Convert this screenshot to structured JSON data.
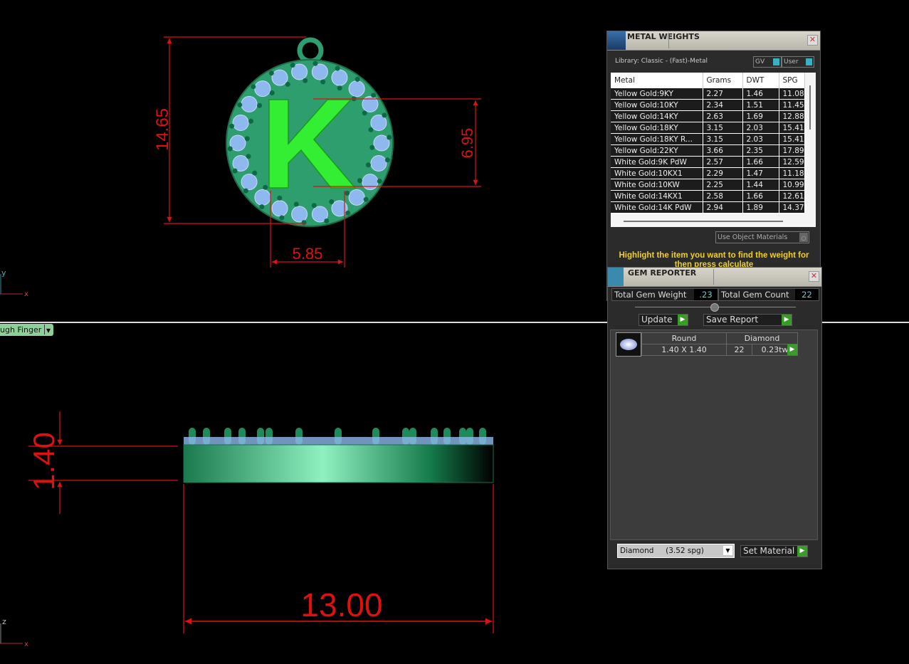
{
  "viewport": {
    "dimensions_top": {
      "height": "14.65",
      "letter_height": "6.95",
      "letter_width": "5.85"
    },
    "dimensions_side": {
      "thickness": "1.40",
      "width": "13.00"
    },
    "letter": "K",
    "axis_top": {
      "y": "y",
      "x": "x"
    },
    "axis_bottom": {
      "z": "z",
      "x": "x"
    },
    "view_dropdown": "ugh Finger"
  },
  "metal_weights": {
    "title": "METAL WEIGHTS",
    "library": "Library: Classic - (Fast)-Metal",
    "gv_label": "GV",
    "user_label": "User",
    "columns": [
      "Metal",
      "Grams",
      "DWT",
      "SPG"
    ],
    "rows": [
      [
        "Yellow Gold:9KY",
        "2.27",
        "1.46",
        "11.08"
      ],
      [
        "Yellow Gold:10KY",
        "2.34",
        "1.51",
        "11.45"
      ],
      [
        "Yellow Gold:14KY",
        "2.63",
        "1.69",
        "12.88"
      ],
      [
        "Yellow Gold:18KY",
        "3.15",
        "2.03",
        "15.41"
      ],
      [
        "Yellow Gold:18KY R...",
        "3.15",
        "2.03",
        "15.41"
      ],
      [
        "Yellow Gold:22KY",
        "3.66",
        "2.35",
        "17.89"
      ],
      [
        "White Gold:9K PdW",
        "2.57",
        "1.66",
        "12.59"
      ],
      [
        "White Gold:10KX1",
        "2.29",
        "1.47",
        "11.18"
      ],
      [
        "White Gold:10KW",
        "2.25",
        "1.44",
        "10.99"
      ],
      [
        "White Gold:14KX1",
        "2.58",
        "1.66",
        "12.61"
      ],
      [
        "White Gold:14K PdW",
        "2.94",
        "1.89",
        "14.37"
      ]
    ],
    "use_object_materials": "Use Object Materials",
    "hint": "Highlight the item you want to find the weight for then press calculate"
  },
  "gem_reporter": {
    "title": "GEM REPORTER",
    "total_weight_label": "Total Gem Weight",
    "total_weight": ".23",
    "total_count_label": "Total Gem Count",
    "total_count": "22",
    "update": "Update",
    "save_report": "Save Report",
    "gem": {
      "shape": "Round",
      "material": "Diamond",
      "size": "1.40 X 1.40",
      "count": "22",
      "weight": "0.23tw"
    },
    "material_select": "Diamond     (3.52 spg)",
    "set_material": "Set Material"
  },
  "colors": {
    "dimension": "#e01010",
    "metal": "#2e9e6e",
    "letter": "#33ee33",
    "gem": "#8fb8ee",
    "hint": "#f0d020"
  }
}
